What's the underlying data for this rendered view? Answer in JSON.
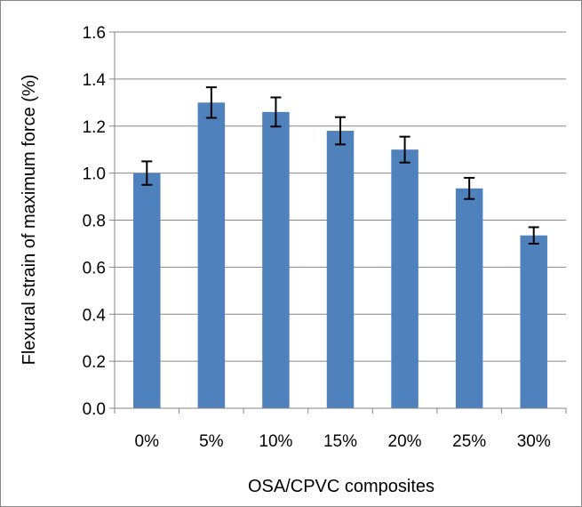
{
  "chart_data": {
    "type": "bar",
    "categories": [
      "0%",
      "5%",
      "10%",
      "15%",
      "20%",
      "25%",
      "30%"
    ],
    "values": [
      1.0,
      1.3,
      1.26,
      1.18,
      1.1,
      0.935,
      0.735
    ],
    "errors": [
      0.05,
      0.065,
      0.062,
      0.058,
      0.055,
      0.045,
      0.035
    ],
    "title": "",
    "xlabel": "OSA/CPVC composites",
    "ylabel": "Flexural strain of maximum force (%)",
    "ylim": [
      0,
      1.6
    ],
    "yticks": [
      0.0,
      0.2,
      0.4,
      0.6,
      0.8,
      1.0,
      1.2,
      1.4,
      1.6
    ],
    "ytick_labels": [
      "0.0",
      "0.2",
      "0.4",
      "0.6",
      "0.8",
      "1.0",
      "1.2",
      "1.4",
      "1.6"
    ],
    "grid": true,
    "legend": "none",
    "bar_color": "#4f81bd",
    "error_bar_color": "#000000",
    "grid_color": "#868686"
  }
}
